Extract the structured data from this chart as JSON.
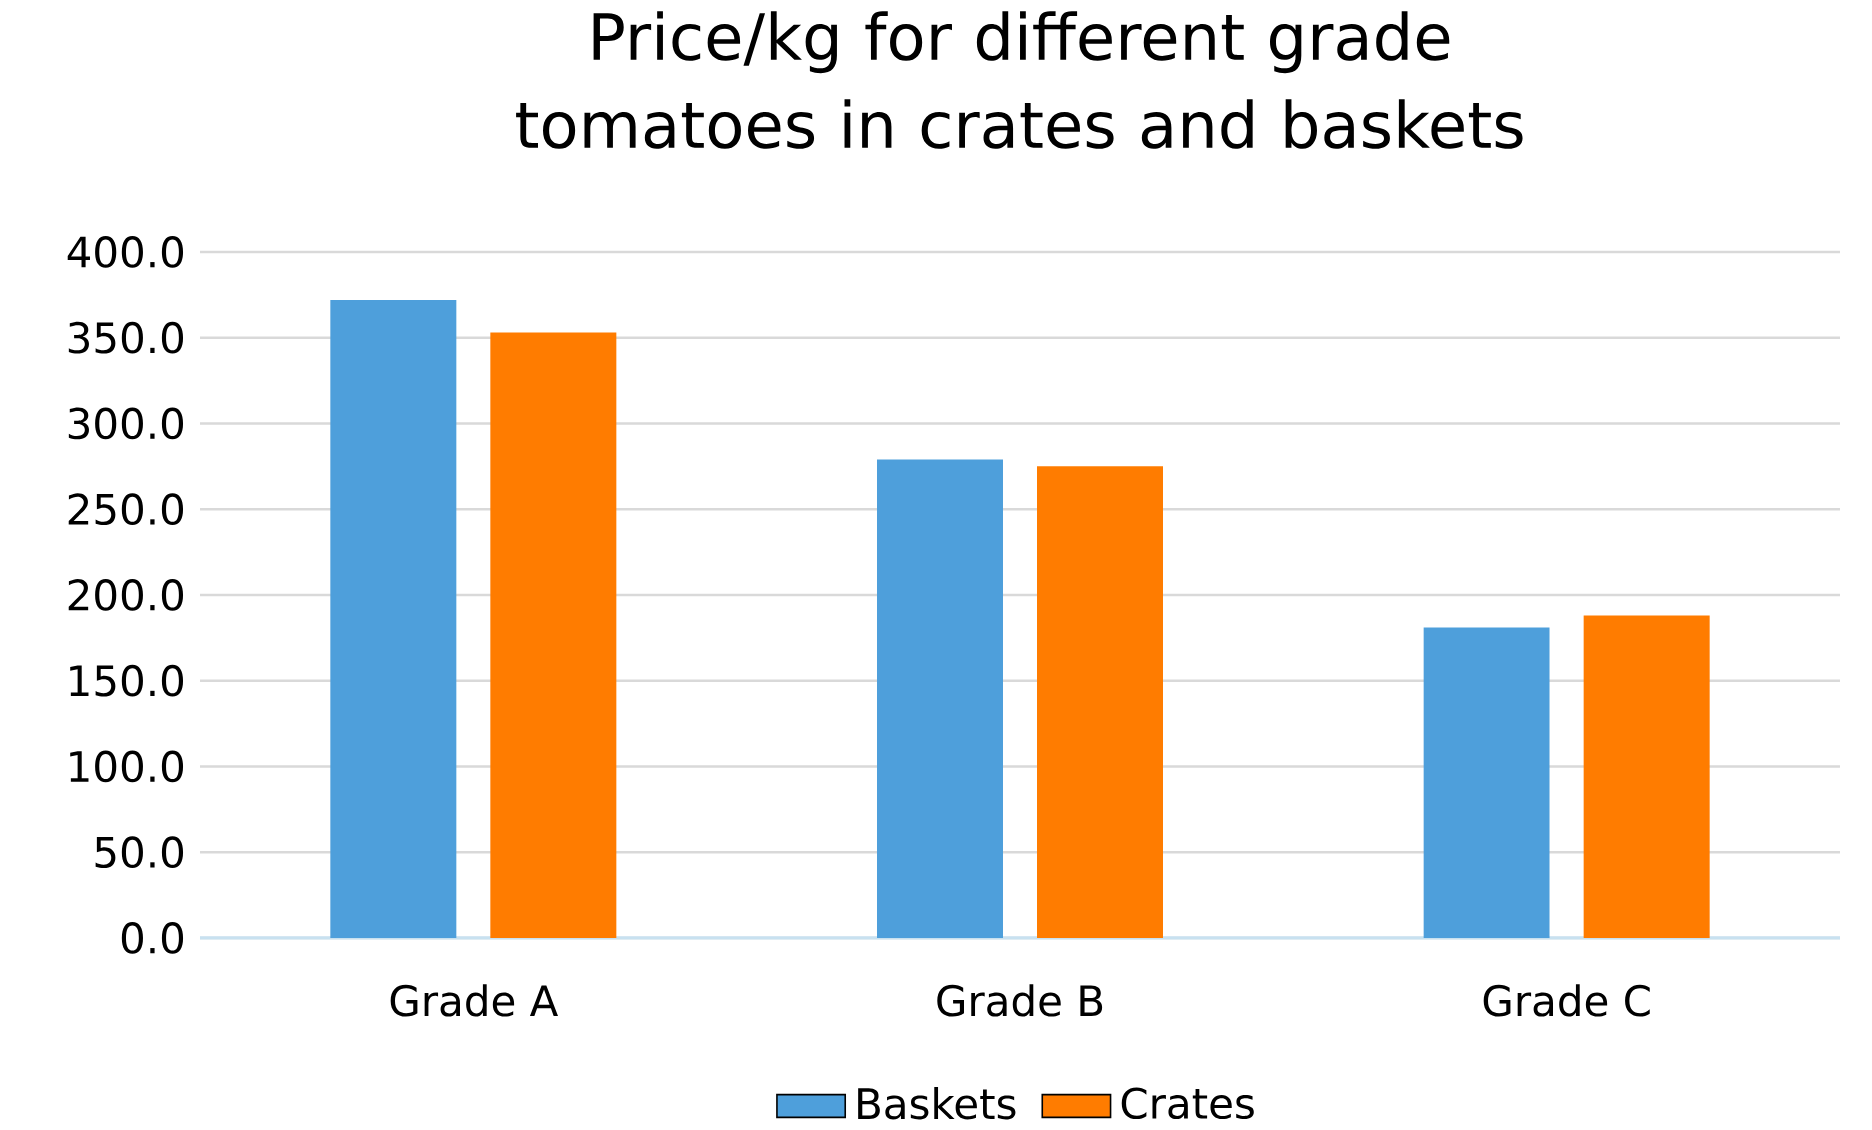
{
  "chart_data": {
    "type": "bar",
    "title": "Price/kg for different grade tomatoes in crates and baskets",
    "categories": [
      "Grade A",
      "Grade B",
      "Grade C"
    ],
    "series": [
      {
        "name": "Baskets",
        "color": "#4e9fdb",
        "values": [
          372,
          279,
          181
        ]
      },
      {
        "name": "Crates",
        "color": "#ff7c00",
        "values": [
          353,
          275,
          188
        ]
      }
    ],
    "ylim": [
      0,
      400
    ],
    "yticks": [
      {
        "value": 0,
        "label": "0.0"
      },
      {
        "value": 50,
        "label": "50.0"
      },
      {
        "value": 100,
        "label": "100.0"
      },
      {
        "value": 150,
        "label": "150.0"
      },
      {
        "value": 200,
        "label": "200.0"
      },
      {
        "value": 250,
        "label": "250.0"
      },
      {
        "value": 300,
        "label": "300.0"
      },
      {
        "value": 350,
        "label": "350.0"
      },
      {
        "value": 400,
        "label": "400.0"
      }
    ],
    "grid": "y",
    "legend": "bottom"
  }
}
